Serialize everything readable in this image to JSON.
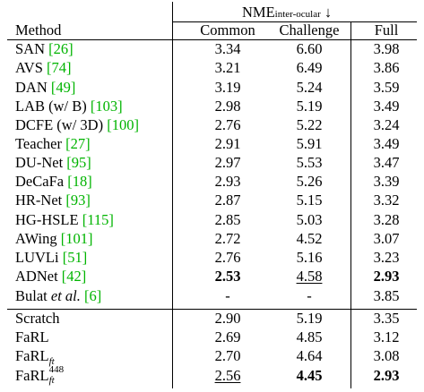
{
  "header": {
    "nme_label": "NME",
    "nme_subscript": "inter-ocular",
    "arrow": "↓",
    "method": "Method",
    "common": "Common",
    "challenge": "Challenge",
    "full": "Full"
  },
  "rows": [
    {
      "name": "SAN",
      "cite": "[26]",
      "common": "3.34",
      "challenge": "6.60",
      "full": "3.98"
    },
    {
      "name": "AVS",
      "cite": "[74]",
      "common": "3.21",
      "challenge": "6.49",
      "full": "3.86"
    },
    {
      "name": "DAN",
      "cite": "[49]",
      "common": "3.19",
      "challenge": "5.24",
      "full": "3.59"
    },
    {
      "name": "LAB (w/ B)",
      "cite": "[103]",
      "common": "2.98",
      "challenge": "5.19",
      "full": "3.49"
    },
    {
      "name": "DCFE (w/ 3D)",
      "cite": "[100]",
      "common": "2.76",
      "challenge": "5.22",
      "full": "3.24"
    },
    {
      "name": "Teacher",
      "cite": "[27]",
      "common": "2.91",
      "challenge": "5.91",
      "full": "3.49"
    },
    {
      "name": "DU-Net",
      "cite": "[95]",
      "common": "2.97",
      "challenge": "5.53",
      "full": "3.47"
    },
    {
      "name": "DeCaFa",
      "cite": "[18]",
      "common": "2.93",
      "challenge": "5.26",
      "full": "3.39"
    },
    {
      "name": "HR-Net",
      "cite": "[93]",
      "common": "2.87",
      "challenge": "5.15",
      "full": "3.32"
    },
    {
      "name": "HG-HSLE",
      "cite": "[115]",
      "common": "2.85",
      "challenge": "5.03",
      "full": "3.28"
    },
    {
      "name": "AWing",
      "cite": "[101]",
      "common": "2.72",
      "challenge": "4.52",
      "full": "3.07"
    },
    {
      "name": "LUVLi",
      "cite": "[51]",
      "common": "2.76",
      "challenge": "5.16",
      "full": "3.23"
    },
    {
      "name": "ADNet",
      "cite": "[42]",
      "common": "2.53",
      "challenge": "4.58",
      "full": "2.93"
    },
    {
      "name": "Bulat",
      "name_italic": "et al.",
      "cite": "[6]",
      "common": "-",
      "challenge": "-",
      "full": "3.85"
    }
  ],
  "ours": [
    {
      "name": "Scratch",
      "common": "2.90",
      "challenge": "5.19",
      "full": "3.35"
    },
    {
      "name": "FaRL",
      "common": "2.69",
      "challenge": "4.85",
      "full": "3.12"
    },
    {
      "name": "FaRL",
      "sub": "ft",
      "common": "2.70",
      "challenge": "4.64",
      "full": "3.08"
    },
    {
      "name": "FaRL",
      "sub": "ft",
      "sup": "448",
      "common": "2.56",
      "challenge": "4.45",
      "full": "2.93"
    }
  ],
  "cite_color": "#00b400"
}
